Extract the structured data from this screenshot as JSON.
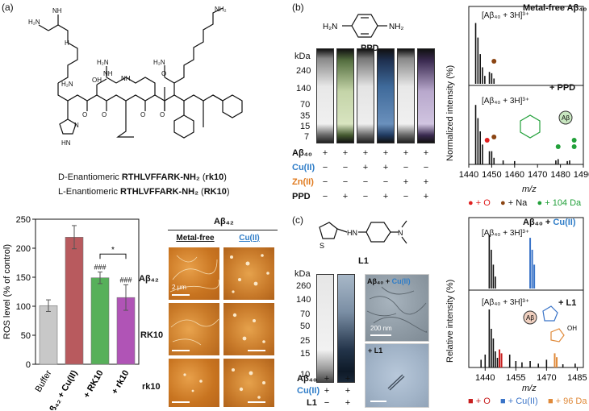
{
  "panel_a": {
    "label": "(a)",
    "d_enantiomer": {
      "prefix": "D-Enantiomeric ",
      "seq": "RTHLVFFARK-NH₂",
      "abbr_open": " (",
      "abbr": "rk10",
      "abbr_close": ")"
    },
    "l_enantiomer": {
      "prefix": "L-Enantiomeric ",
      "seq": "RTHLVFFARK-NH₂",
      "abbr_open": " (",
      "abbr": "RK10",
      "abbr_close": ")"
    },
    "afm_title": "Aβ₄₂",
    "afm_cols": [
      "Metal-free",
      "Cu(II)"
    ],
    "afm_rows": [
      "Aβ₄₂",
      "RK10",
      "rk10"
    ],
    "afm_scale_label": "2 μm"
  },
  "chart_data": {
    "type": "bar",
    "categories": [
      "Buffer",
      "Aβ₄₂ + Cu(II)",
      "+ RK10",
      "+ rk10"
    ],
    "values": [
      101,
      219,
      149,
      115
    ],
    "errors": [
      10,
      20,
      10,
      22
    ],
    "ylabel": "ROS level (% of control)",
    "ylim": [
      0,
      250
    ],
    "yticks": [
      0,
      50,
      100,
      150,
      200,
      250
    ],
    "significance": [
      "###",
      "###",
      "*"
    ],
    "colors": [
      "#c8c8c8",
      "#b85a5e",
      "#57b05a",
      "#b054b6"
    ]
  },
  "panel_b": {
    "label": "(b)",
    "compound": "PPD",
    "kda_label": "kDa",
    "markers": [
      "240",
      "140",
      "70",
      "35",
      "15",
      "7"
    ],
    "row_labels": [
      "Aβ₄₀",
      "Cu(II)",
      "Zn(II)",
      "PPD"
    ],
    "grid": [
      [
        "+",
        "+",
        "+",
        "+",
        "+",
        "+"
      ],
      [
        "−",
        "−",
        "+",
        "+",
        "−",
        "−"
      ],
      [
        "−",
        "−",
        "−",
        "−",
        "+",
        "+"
      ],
      [
        "−",
        "+",
        "−",
        "+",
        "−",
        "+"
      ]
    ],
    "ms_title": "Metal-free Aβ₄₀",
    "ms_ion": "[Aβ₄₀ + 3H]³⁺",
    "ms_ion2": "[Aβ₄₀ + 3H]³⁺",
    "ms_plus": "+ PPD",
    "ylabel": "Normalized intensity (%)",
    "xlabel": "m/z",
    "xticks": [
      "1440",
      "1450",
      "1460",
      "1470",
      "1480",
      "1490"
    ],
    "legend": [
      {
        "symbol": "●",
        "text": "+ O",
        "color": "#e02020"
      },
      {
        "symbol": "●",
        "text": "+ Na",
        "color": "#8b4513"
      },
      {
        "symbol": "●",
        "text": "+ 104 Da",
        "color": "#22a03a"
      }
    ],
    "inset_label": "Aβ"
  },
  "panel_c": {
    "label": "(c)",
    "compound": "L1",
    "kda_label": "kDa",
    "markers": [
      "260",
      "140",
      "70",
      "50",
      "25",
      "15",
      "10"
    ],
    "row_labels": [
      "Aβ₄₀",
      "Cu(II)",
      "L1"
    ],
    "grid": [
      [
        "+",
        "+"
      ],
      [
        "+",
        "+"
      ],
      [
        "−",
        "+"
      ]
    ],
    "tem1_label": "Aβ₄₀ + Cu(II)",
    "tem1_label_a": "Aβ₄₀ + ",
    "tem1_label_b": "Cu(II)",
    "tem2_label": "+ L1",
    "tem_scale": "200 nm",
    "ms_title_a": "Aβ₄₀ + ",
    "ms_title_b": "Cu(II)",
    "ms_ion": "[Aβ₄₀ + 3H]³⁺",
    "ms_ion2": "[Aβ₄₀ + 3H]³⁺",
    "ms_plus": "+ L1",
    "ylabel": "Relative intensity (%)",
    "xlabel": "m/z",
    "xticks": [
      "1440",
      "1455",
      "1470",
      "1485"
    ],
    "legend": [
      {
        "symbol": "■",
        "text": "+ O",
        "color": "#c81e1e"
      },
      {
        "symbol": "■",
        "text": "+ Cu(II)",
        "color": "#3a74c8"
      },
      {
        "symbol": "■",
        "text": "+ 96 Da",
        "color": "#e08a3a"
      }
    ],
    "inset_label": "Aβ",
    "inset_oh": "OH"
  }
}
